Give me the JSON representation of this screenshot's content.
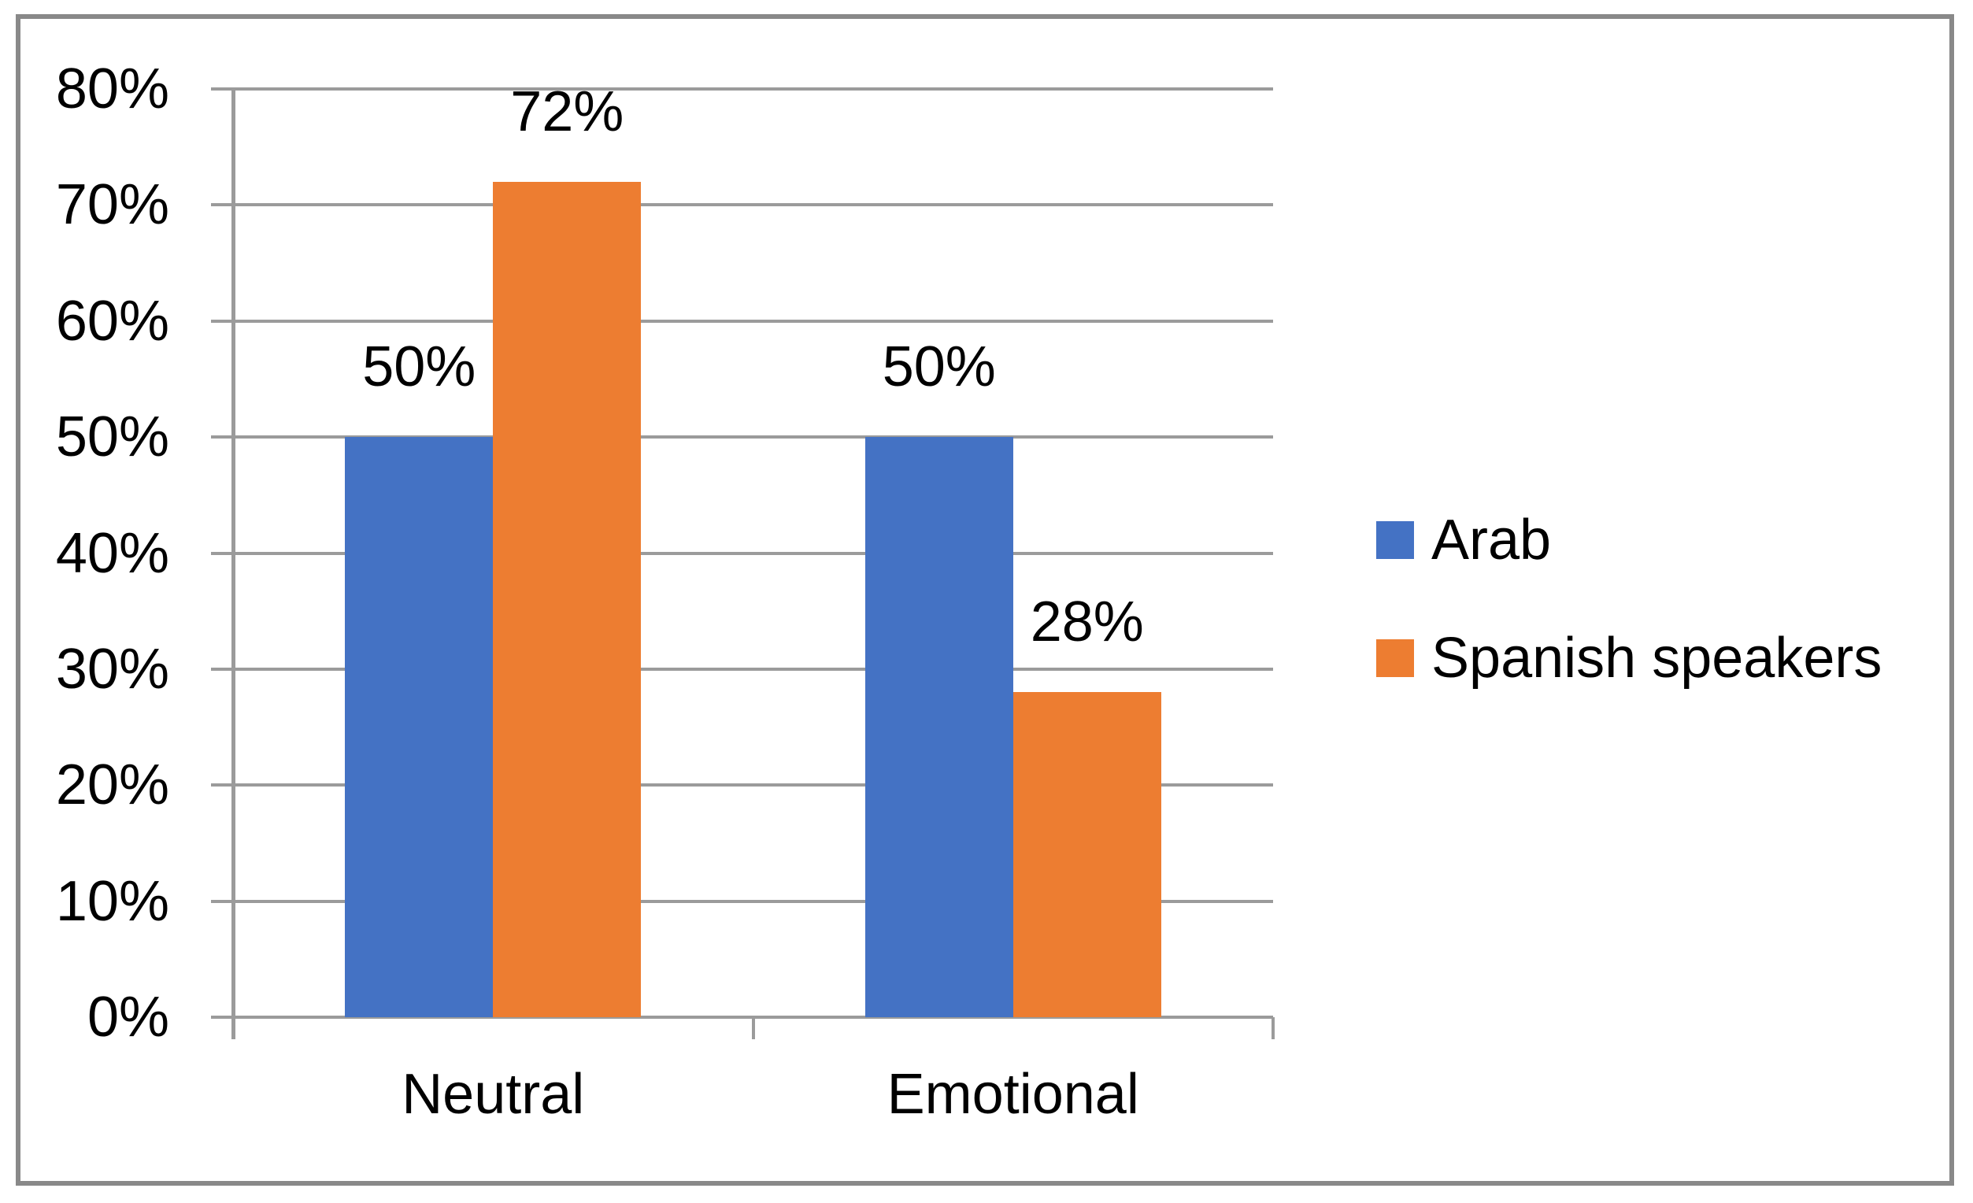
{
  "chart_data": {
    "type": "bar",
    "title": "",
    "categories": [
      "Neutral",
      "Emotional"
    ],
    "series": [
      {
        "name": "Arab",
        "color": "#4472C4",
        "values": [
          50,
          50
        ],
        "data_labels": [
          "50%",
          "50%"
        ]
      },
      {
        "name": "Spanish speakers",
        "color": "#ED7D31",
        "values": [
          72,
          28
        ],
        "data_labels": [
          "72%",
          "28%"
        ]
      }
    ],
    "y_axis": {
      "min": 0,
      "max": 80,
      "step": 10,
      "tick_labels": [
        "0%",
        "10%",
        "20%",
        "30%",
        "40%",
        "50%",
        "60%",
        "70%",
        "80%"
      ]
    },
    "x_axis": {
      "labels": [
        "Neutral",
        "Emotional"
      ]
    },
    "grid": true,
    "legend": {
      "position": "right",
      "entries": [
        {
          "label": "Arab",
          "color": "#4472C4"
        },
        {
          "label": "Spanish speakers",
          "color": "#ED7D31"
        }
      ]
    },
    "colors": {
      "gridline": "#9B9B9B",
      "axis": "#9B9B9B",
      "border": "#898989",
      "text": "#000000",
      "background": "#FFFFFF",
      "series_arab": "#4472C4",
      "series_spanish": "#ED7D31"
    }
  }
}
